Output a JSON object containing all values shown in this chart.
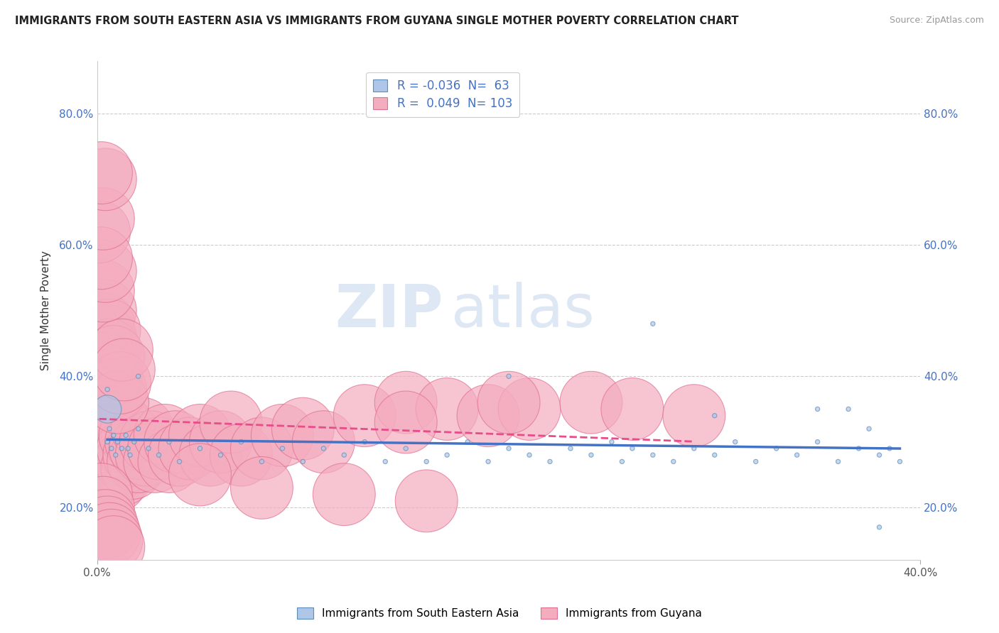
{
  "title": "IMMIGRANTS FROM SOUTH EASTERN ASIA VS IMMIGRANTS FROM GUYANA SINGLE MOTHER POVERTY CORRELATION CHART",
  "source": "Source: ZipAtlas.com",
  "ylabel": "Single Mother Poverty",
  "xlim": [
    0.0,
    0.4
  ],
  "ylim": [
    0.12,
    0.88
  ],
  "xtick_positions": [
    0.0,
    0.4
  ],
  "xticklabels": [
    "0.0%",
    "40.0%"
  ],
  "yticks": [
    0.2,
    0.4,
    0.6,
    0.8
  ],
  "yticklabels": [
    "20.0%",
    "40.0%",
    "60.0%",
    "80.0%"
  ],
  "blue_R": -0.036,
  "blue_N": 63,
  "pink_R": 0.049,
  "pink_N": 103,
  "blue_color": "#AEC6E8",
  "blue_edge_color": "#5B8DB8",
  "blue_line_color": "#4472C4",
  "pink_color": "#F4ACBF",
  "pink_edge_color": "#E07090",
  "pink_line_color": "#E84C8B",
  "legend_label_blue": "Immigrants from South Eastern Asia",
  "legend_label_pink": "Immigrants from Guyana",
  "background_color": "#ffffff",
  "watermark_zip": "ZIP",
  "watermark_atlas": "atlas",
  "blue_x": [
    0.005,
    0.005,
    0.006,
    0.007,
    0.008,
    0.009,
    0.01,
    0.012,
    0.014,
    0.016,
    0.018,
    0.02,
    0.025,
    0.03,
    0.035,
    0.04,
    0.05,
    0.06,
    0.07,
    0.08,
    0.09,
    0.1,
    0.11,
    0.12,
    0.13,
    0.14,
    0.15,
    0.16,
    0.17,
    0.18,
    0.19,
    0.2,
    0.21,
    0.22,
    0.23,
    0.24,
    0.25,
    0.255,
    0.26,
    0.27,
    0.28,
    0.29,
    0.3,
    0.31,
    0.32,
    0.33,
    0.34,
    0.35,
    0.36,
    0.365,
    0.37,
    0.375,
    0.38,
    0.385,
    0.39,
    0.015,
    0.02,
    0.2,
    0.27,
    0.3,
    0.35,
    0.38,
    0.005
  ],
  "blue_y": [
    0.35,
    0.3,
    0.32,
    0.29,
    0.31,
    0.28,
    0.3,
    0.29,
    0.31,
    0.28,
    0.3,
    0.32,
    0.29,
    0.28,
    0.3,
    0.27,
    0.29,
    0.28,
    0.3,
    0.27,
    0.29,
    0.27,
    0.29,
    0.28,
    0.3,
    0.27,
    0.29,
    0.27,
    0.28,
    0.3,
    0.27,
    0.29,
    0.28,
    0.27,
    0.29,
    0.28,
    0.3,
    0.27,
    0.29,
    0.28,
    0.27,
    0.29,
    0.28,
    0.3,
    0.27,
    0.29,
    0.28,
    0.3,
    0.27,
    0.35,
    0.29,
    0.32,
    0.28,
    0.29,
    0.27,
    0.29,
    0.4,
    0.4,
    0.48,
    0.34,
    0.35,
    0.17,
    0.38
  ],
  "blue_sizes": [
    800,
    20,
    20,
    20,
    20,
    20,
    20,
    20,
    20,
    20,
    20,
    20,
    20,
    20,
    20,
    20,
    20,
    20,
    20,
    20,
    20,
    20,
    20,
    20,
    20,
    20,
    20,
    20,
    20,
    20,
    20,
    20,
    20,
    20,
    20,
    20,
    20,
    20,
    20,
    20,
    20,
    20,
    20,
    20,
    20,
    20,
    20,
    20,
    20,
    20,
    20,
    20,
    20,
    20,
    20,
    20,
    20,
    20,
    20,
    20,
    20,
    20,
    20
  ],
  "pink_x": [
    0.001,
    0.001,
    0.002,
    0.002,
    0.002,
    0.003,
    0.003,
    0.003,
    0.003,
    0.004,
    0.004,
    0.004,
    0.005,
    0.005,
    0.005,
    0.005,
    0.006,
    0.006,
    0.006,
    0.007,
    0.007,
    0.008,
    0.008,
    0.009,
    0.009,
    0.01,
    0.01,
    0.011,
    0.012,
    0.012,
    0.013,
    0.014,
    0.015,
    0.016,
    0.017,
    0.018,
    0.019,
    0.02,
    0.021,
    0.022,
    0.024,
    0.026,
    0.028,
    0.03,
    0.033,
    0.035,
    0.038,
    0.04,
    0.045,
    0.05,
    0.055,
    0.06,
    0.065,
    0.07,
    0.08,
    0.09,
    0.1,
    0.11,
    0.13,
    0.15,
    0.17,
    0.19,
    0.21,
    0.24,
    0.26,
    0.29,
    0.001,
    0.002,
    0.003,
    0.003,
    0.004,
    0.004,
    0.005,
    0.005,
    0.006,
    0.006,
    0.007,
    0.008,
    0.009,
    0.01,
    0.011,
    0.012,
    0.013,
    0.002,
    0.003,
    0.004,
    0.005,
    0.006,
    0.007,
    0.008,
    0.003,
    0.004,
    0.001,
    0.002,
    0.003,
    0.004,
    0.15,
    0.2,
    0.05,
    0.08,
    0.12,
    0.16,
    0.002
  ],
  "pink_y": [
    0.28,
    0.3,
    0.27,
    0.31,
    0.33,
    0.26,
    0.29,
    0.32,
    0.35,
    0.25,
    0.28,
    0.31,
    0.24,
    0.27,
    0.3,
    0.34,
    0.26,
    0.29,
    0.33,
    0.25,
    0.28,
    0.27,
    0.31,
    0.24,
    0.29,
    0.26,
    0.3,
    0.33,
    0.25,
    0.28,
    0.32,
    0.27,
    0.29,
    0.31,
    0.26,
    0.28,
    0.3,
    0.27,
    0.29,
    0.32,
    0.28,
    0.3,
    0.27,
    0.29,
    0.31,
    0.27,
    0.3,
    0.28,
    0.29,
    0.31,
    0.28,
    0.3,
    0.33,
    0.28,
    0.29,
    0.31,
    0.32,
    0.3,
    0.34,
    0.36,
    0.35,
    0.34,
    0.35,
    0.36,
    0.35,
    0.34,
    0.43,
    0.45,
    0.48,
    0.42,
    0.46,
    0.5,
    0.38,
    0.41,
    0.44,
    0.47,
    0.4,
    0.43,
    0.38,
    0.36,
    0.39,
    0.44,
    0.41,
    0.22,
    0.2,
    0.18,
    0.17,
    0.16,
    0.15,
    0.14,
    0.53,
    0.56,
    0.62,
    0.58,
    0.64,
    0.7,
    0.33,
    0.36,
    0.25,
    0.23,
    0.22,
    0.21,
    0.71
  ],
  "pink_sizes": [
    20,
    20,
    20,
    20,
    20,
    20,
    20,
    20,
    20,
    20,
    20,
    20,
    20,
    20,
    20,
    20,
    20,
    20,
    20,
    20,
    20,
    20,
    20,
    20,
    20,
    20,
    20,
    20,
    20,
    20,
    20,
    20,
    20,
    20,
    20,
    20,
    20,
    20,
    20,
    20,
    20,
    20,
    20,
    20,
    20,
    20,
    20,
    20,
    20,
    20,
    20,
    20,
    20,
    20,
    20,
    20,
    20,
    20,
    20,
    20,
    20,
    20,
    20,
    20,
    20,
    20,
    20,
    20,
    20,
    20,
    20,
    20,
    20,
    20,
    20,
    20,
    20,
    20,
    20,
    20,
    20,
    20,
    20,
    20,
    20,
    20,
    20,
    20,
    20,
    20,
    20,
    20,
    20,
    20,
    20,
    20,
    20,
    20,
    20,
    20,
    20,
    20,
    20
  ]
}
